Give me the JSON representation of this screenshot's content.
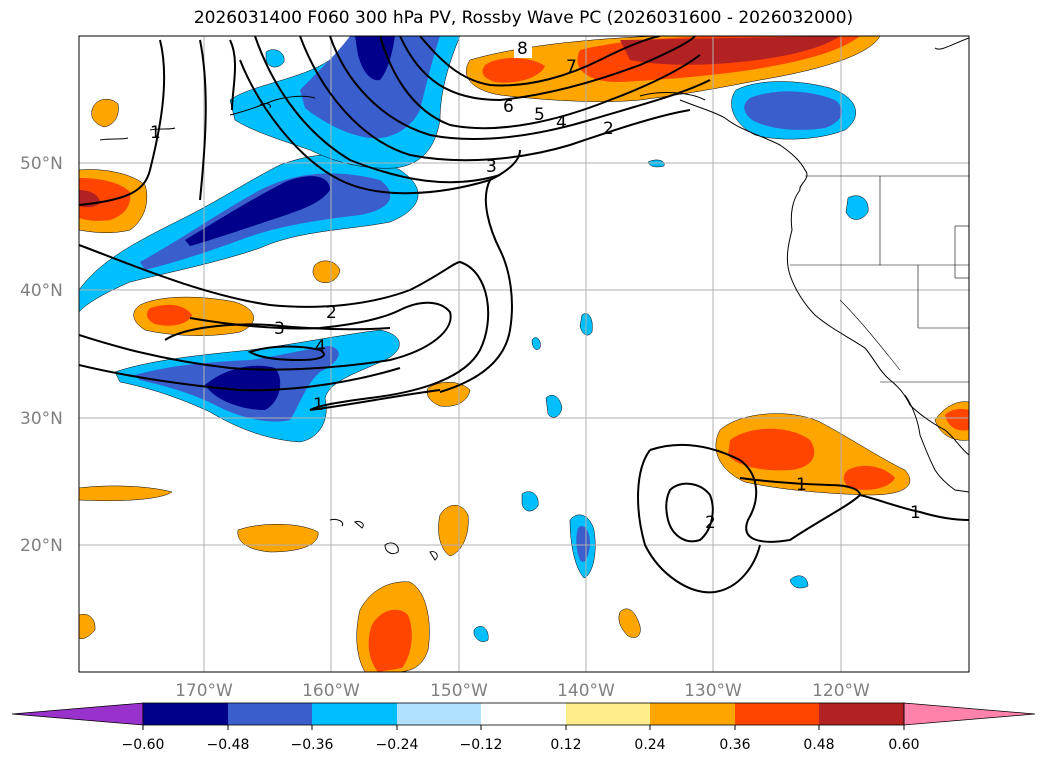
{
  "title": "2026031400 F060 300 hPa PV, Rossby Wave PC (2026031600 - 2026032000)",
  "map": {
    "projection": "PlateCarree",
    "extent": {
      "lon_min": -180,
      "lon_max": -110,
      "lat_min": 10,
      "lat_max": 60
    },
    "gridlines": true,
    "lat_labels": [
      "50°N",
      "40°N",
      "30°N",
      "20°N"
    ],
    "lon_labels": [
      "170°W",
      "160°W",
      "150°W",
      "140°W",
      "130°W",
      "120°W"
    ],
    "contour_labels": [
      "8",
      "7",
      "6",
      "5",
      "4",
      "2",
      "3",
      "2",
      "3",
      "4",
      "1",
      "1",
      "2",
      "1",
      "1"
    ]
  },
  "colorbar": {
    "ticks": [
      "−0.60",
      "−0.48",
      "−0.36",
      "−0.24",
      "−0.12",
      "0.12",
      "0.24",
      "0.36",
      "0.48",
      "0.60"
    ],
    "colors": [
      "#9932cc",
      "#00008b",
      "#3a5fcd",
      "#00bfff",
      "#b0e2ff",
      "#ffffff",
      "#ffec8b",
      "#ffa500",
      "#ff4500",
      "#b22222",
      "#ff82ab"
    ]
  }
}
